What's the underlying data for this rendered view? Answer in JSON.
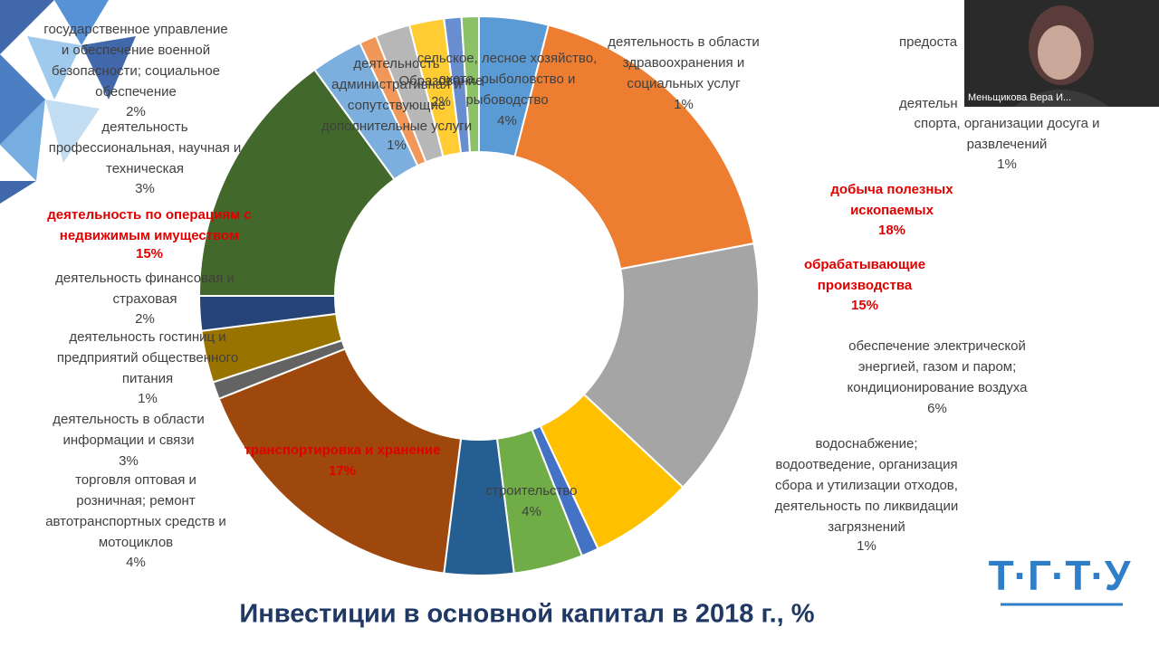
{
  "chart_data": {
    "type": "donut",
    "title": "Инвестиции в основной капитал в 2018 г., %",
    "categories": [
      [
        "сельское, лесное хозяйство,",
        "охота, рыболовство и",
        "рыбоводство"
      ],
      [
        "добыча полезных",
        "ископаемых"
      ],
      [
        "обрабатывающие",
        "производства"
      ],
      [
        "обеспечение электрической",
        "энергией,  газом и паром;",
        "кондиционирование воздуха"
      ],
      [
        "водоснабжение;",
        "водоотведение, организация",
        "сбора и утилизации отходов,",
        "деятельность по ликвидации",
        "загрязнений"
      ],
      [
        "строительство"
      ],
      [
        "торговля оптовая и",
        "розничная; ремонт",
        "автотранспортных средств и",
        "мотоциклов"
      ],
      [
        "транспортировка и хранение"
      ],
      [
        "деятельность гостиниц и",
        "предприятий общественного",
        "питания"
      ],
      [
        "деятельность в области",
        "информации и связи"
      ],
      [
        "деятельность финансовая и",
        "страховая"
      ],
      [
        "деятельность по операциям с",
        "недвижимым имуществом"
      ],
      [
        "деятельность",
        "профессиональная,  научная и",
        "техническая"
      ],
      [
        "деятельность",
        "административная и",
        "сопутствующие",
        "дополнительные услуги"
      ],
      [
        "государственное управление",
        "и обеспечение военной",
        "безопасности;  социальное",
        "обеспечение"
      ],
      [
        "Образование"
      ],
      [
        "деятельность в области",
        "здравоохранения  и",
        "социальных услуг"
      ],
      [
        "деятельн",
        "спорта, организации досуга и",
        "развлечений"
      ]
    ],
    "values": [
      4,
      18,
      15,
      6,
      1,
      4,
      4,
      17,
      1,
      3,
      2,
      15,
      3,
      1,
      2,
      2,
      1,
      1
    ],
    "value_labels": [
      "4%",
      "18%",
      "15%",
      "6%",
      "1%",
      "4%",
      "4%",
      "17%",
      "1%",
      "3%",
      "2%",
      "15%",
      "3%",
      "1%",
      "2%",
      "2%",
      "1%",
      "1%"
    ],
    "colors": [
      "#5b9bd5",
      "#ed7d31",
      "#a5a5a5",
      "#ffc000",
      "#4472c4",
      "#70ad47",
      "#255e91",
      "#9e480e",
      "#636363",
      "#997300",
      "#264478",
      "#43682b",
      "#7cafdd",
      "#f1975a",
      "#b7b7b7",
      "#ffcd33",
      "#698ed0",
      "#8cc168"
    ],
    "label_colors": [
      "#404040",
      "#e00000",
      "#e00000",
      "#404040",
      "#404040",
      "#404040",
      "#404040",
      "#e00000",
      "#404040",
      "#404040",
      "#404040",
      "#e00000",
      "#404040",
      "#404040",
      "#404040",
      "#404040",
      "#404040",
      "#404040"
    ],
    "annotations": [
      "предоста"
    ]
  },
  "webcam": {
    "name": "Меньщикова Вера И..."
  },
  "logo": "Т·Г·Т·У"
}
